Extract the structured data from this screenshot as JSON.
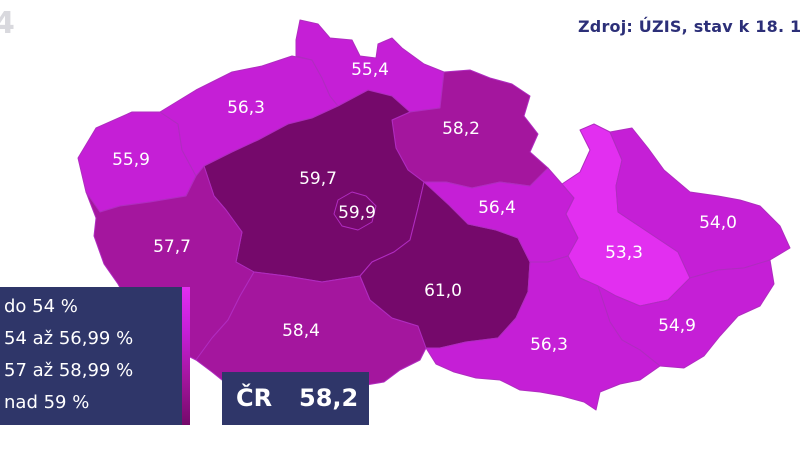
{
  "corner_logo": "4",
  "source_text": "Zdroj: ÚZIS, stav k 18. 1",
  "colors": {
    "under_54": "#e22ff0",
    "from_54_to_56_99": "#c51fd6",
    "from_57_to_58_99": "#a4169e",
    "over_59": "#75096b",
    "panel": "#2f3669",
    "source_text": "#2c2f78"
  },
  "legend": [
    {
      "label": "do 54 %",
      "color_key": "under_54"
    },
    {
      "label": "54 až 56,99 %",
      "color_key": "from_54_to_56_99"
    },
    {
      "label": "57 až 58,99 %",
      "color_key": "from_57_to_58_99"
    },
    {
      "label": "nad 59 %",
      "color_key": "over_59"
    }
  ],
  "total": {
    "label": "ČR",
    "value": "58,2"
  },
  "regions": [
    {
      "id": "karlovarsky",
      "value": "55,9",
      "color_key": "from_54_to_56_99"
    },
    {
      "id": "ustecky",
      "value": "56,3",
      "color_key": "from_54_to_56_99"
    },
    {
      "id": "liberecky",
      "value": "55,4",
      "color_key": "from_54_to_56_99"
    },
    {
      "id": "kralovehradecky",
      "value": "58,2",
      "color_key": "from_57_to_58_99"
    },
    {
      "id": "stredocesky",
      "value": "59,7",
      "color_key": "over_59"
    },
    {
      "id": "praha",
      "value": "59,9",
      "color_key": "over_59"
    },
    {
      "id": "plzensky",
      "value": "57,7",
      "color_key": "from_57_to_58_99"
    },
    {
      "id": "jihocesky",
      "value": "58,4",
      "color_key": "from_57_to_58_99"
    },
    {
      "id": "vysocina",
      "value": "61,0",
      "color_key": "over_59"
    },
    {
      "id": "pardubicky",
      "value": "56,4",
      "color_key": "from_54_to_56_99"
    },
    {
      "id": "olomoucky",
      "value": "53,3",
      "color_key": "under_54"
    },
    {
      "id": "moravskoslezsky",
      "value": "54,0",
      "color_key": "from_54_to_56_99"
    },
    {
      "id": "zlinsky",
      "value": "54,9",
      "color_key": "from_54_to_56_99"
    },
    {
      "id": "jihomoravsky",
      "value": "56,3",
      "color_key": "from_54_to_56_99"
    }
  ]
}
